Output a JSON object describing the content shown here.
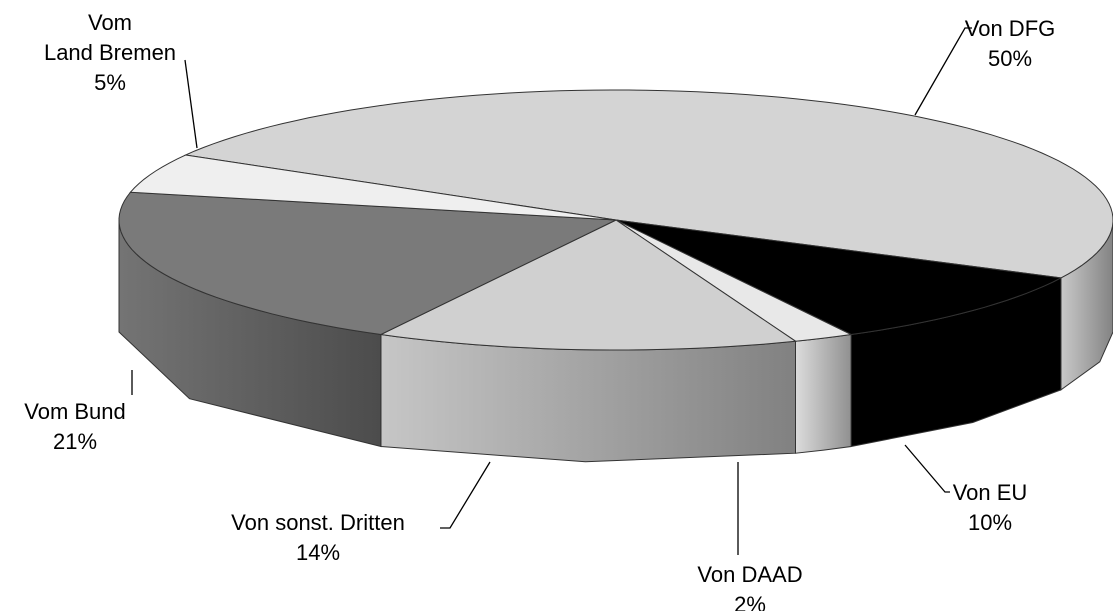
{
  "chart_data": {
    "type": "pie3d",
    "categories": [
      "Von DFG",
      "Von EU",
      "Von DAAD",
      "Von sonst. Dritten",
      "Vom Bund",
      "Vom\nLand Bremen"
    ],
    "values": [
      50,
      10,
      2,
      14,
      21,
      5
    ],
    "value_labels": [
      "50%",
      "10%",
      "2%",
      "14%",
      "21%",
      "5%"
    ],
    "colors": [
      "#d4d4d4",
      "#000000",
      "#e8e8e8",
      "#d0d0d0",
      "#7a7a7a",
      "#efefef"
    ]
  }
}
